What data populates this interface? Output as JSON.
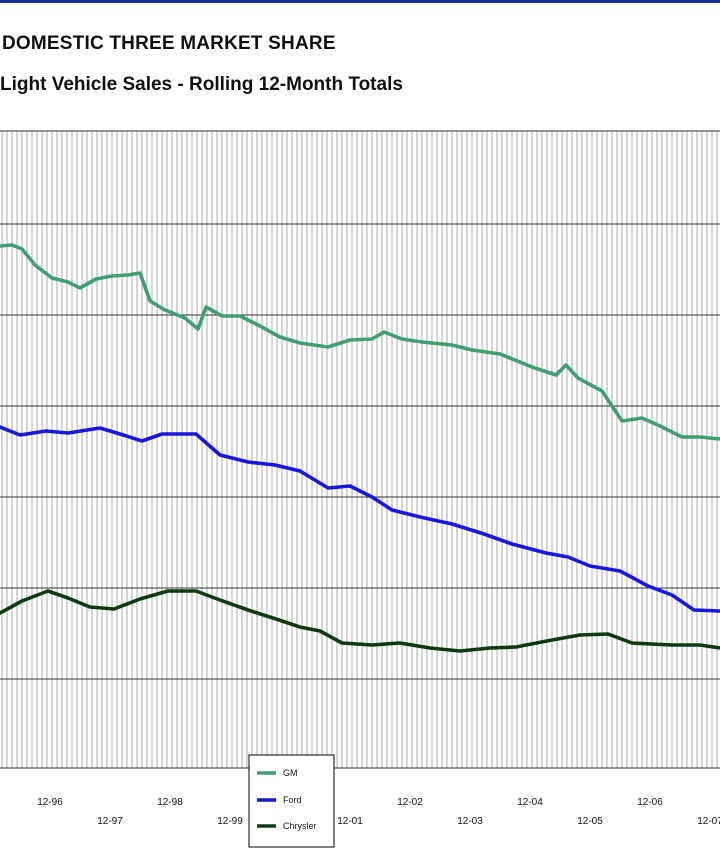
{
  "header": {
    "title": "DOMESTIC THREE MARKET SHARE",
    "subtitle": "Light Vehicle Sales - Rolling 12-Month Totals"
  },
  "chart_data": {
    "type": "line",
    "title": "DOMESTIC THREE MARKET SHARE",
    "subtitle": "Light Vehicle Sales - Rolling 12-Month Totals",
    "xlabel": "",
    "ylabel": "",
    "grid": true,
    "legend_position": "bottom-center",
    "x_tick_labels": [
      "12-96",
      "12-97",
      "12-98",
      "12-99",
      "12-01",
      "12-02",
      "12-03",
      "12-04",
      "12-05",
      "12-06",
      "12-07"
    ],
    "colors": {
      "GM": "#3f9e72",
      "Ford": "#1717e0",
      "Chrysler": "#0e3a12"
    },
    "series": [
      {
        "name": "GM",
        "points": [
          [
            0,
            243
          ],
          [
            12,
            242
          ],
          [
            22,
            246
          ],
          [
            35,
            262
          ],
          [
            52,
            275
          ],
          [
            68,
            279
          ],
          [
            80,
            285
          ],
          [
            96,
            276
          ],
          [
            112,
            273
          ],
          [
            128,
            272
          ],
          [
            140,
            270
          ],
          [
            150,
            298
          ],
          [
            165,
            307
          ],
          [
            185,
            315
          ],
          [
            198,
            326
          ],
          [
            206,
            304
          ],
          [
            222,
            313
          ],
          [
            240,
            313
          ],
          [
            258,
            322
          ],
          [
            280,
            334
          ],
          [
            300,
            340
          ],
          [
            328,
            344
          ],
          [
            350,
            337
          ],
          [
            372,
            336
          ],
          [
            384,
            329
          ],
          [
            402,
            336
          ],
          [
            422,
            339
          ],
          [
            452,
            342
          ],
          [
            472,
            347
          ],
          [
            500,
            351
          ],
          [
            532,
            364
          ],
          [
            556,
            372
          ],
          [
            566,
            362
          ],
          [
            578,
            375
          ],
          [
            602,
            388
          ],
          [
            622,
            418
          ],
          [
            642,
            415
          ],
          [
            660,
            423
          ],
          [
            682,
            434
          ],
          [
            700,
            434
          ],
          [
            720,
            436
          ]
        ]
      },
      {
        "name": "Ford",
        "points": [
          [
            0,
            424
          ],
          [
            20,
            432
          ],
          [
            46,
            428
          ],
          [
            68,
            430
          ],
          [
            100,
            425
          ],
          [
            120,
            431
          ],
          [
            142,
            438
          ],
          [
            162,
            431
          ],
          [
            196,
            431
          ],
          [
            220,
            452
          ],
          [
            248,
            459
          ],
          [
            275,
            462
          ],
          [
            300,
            468
          ],
          [
            328,
            485
          ],
          [
            350,
            483
          ],
          [
            372,
            494
          ],
          [
            392,
            507
          ],
          [
            420,
            514
          ],
          [
            452,
            521
          ],
          [
            484,
            531
          ],
          [
            512,
            541
          ],
          [
            546,
            550
          ],
          [
            568,
            554
          ],
          [
            590,
            563
          ],
          [
            620,
            568
          ],
          [
            648,
            583
          ],
          [
            672,
            592
          ],
          [
            694,
            607
          ],
          [
            720,
            608
          ]
        ]
      },
      {
        "name": "Chrysler",
        "points": [
          [
            0,
            610
          ],
          [
            22,
            598
          ],
          [
            48,
            588
          ],
          [
            68,
            595
          ],
          [
            90,
            604
          ],
          [
            114,
            606
          ],
          [
            140,
            596
          ],
          [
            168,
            588
          ],
          [
            196,
            588
          ],
          [
            220,
            597
          ],
          [
            248,
            607
          ],
          [
            276,
            616
          ],
          [
            300,
            624
          ],
          [
            320,
            628
          ],
          [
            342,
            640
          ],
          [
            372,
            642
          ],
          [
            400,
            640
          ],
          [
            430,
            645
          ],
          [
            460,
            648
          ],
          [
            490,
            645
          ],
          [
            516,
            644
          ],
          [
            552,
            637
          ],
          [
            580,
            632
          ],
          [
            608,
            631
          ],
          [
            632,
            640
          ],
          [
            672,
            642
          ],
          [
            700,
            642
          ],
          [
            720,
            645
          ]
        ]
      }
    ]
  }
}
